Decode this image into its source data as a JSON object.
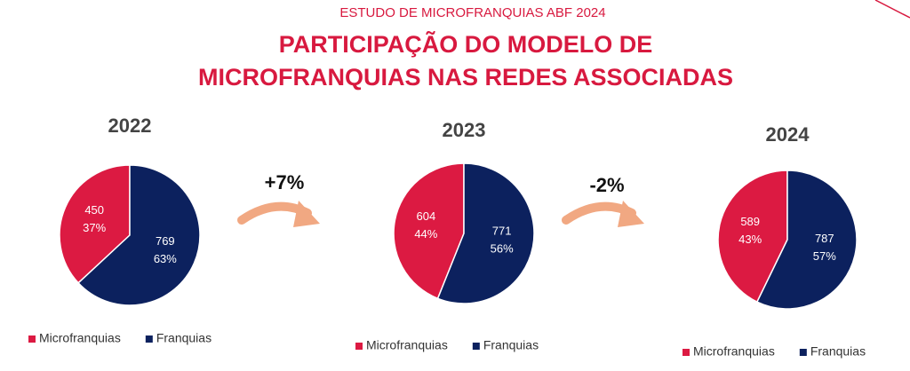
{
  "header": {
    "subtitle": "ESTUDO DE MICROFRANQUIAS ABF 2024",
    "title_lines": [
      "PARTICIPAÇÃO DO MODELO DE",
      "MICROFRANQUIAS NAS REDES ASSOCIADAS"
    ]
  },
  "changes": [
    "+7%",
    "-2%"
  ],
  "chart_data": [
    {
      "type": "pie",
      "title": "2022",
      "categories": [
        "Microfranquias",
        "Franquias"
      ],
      "values": [
        450,
        769
      ],
      "percentages": [
        37,
        63
      ],
      "percent_labels": [
        "37%",
        "63%"
      ],
      "colors": [
        "#dc1a42",
        "#0c215e"
      ]
    },
    {
      "type": "pie",
      "title": "2023",
      "categories": [
        "Microfranquias",
        "Franquias"
      ],
      "values": [
        604,
        771
      ],
      "percentages": [
        44,
        56
      ],
      "percent_labels": [
        "44%",
        "56%"
      ],
      "colors": [
        "#dc1a42",
        "#0c215e"
      ]
    },
    {
      "type": "pie",
      "title": "2024",
      "categories": [
        "Microfranquias",
        "Franquias"
      ],
      "values": [
        589,
        787
      ],
      "percentages": [
        43,
        57
      ],
      "percent_labels": [
        "43%",
        "57%"
      ],
      "colors": [
        "#dc1a42",
        "#0c215e"
      ]
    }
  ]
}
